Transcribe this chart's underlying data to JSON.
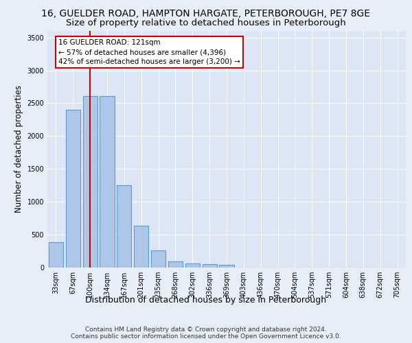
{
  "title_line1": "16, GUELDER ROAD, HAMPTON HARGATE, PETERBOROUGH, PE7 8GE",
  "title_line2": "Size of property relative to detached houses in Peterborough",
  "xlabel": "Distribution of detached houses by size in Peterborough",
  "ylabel": "Number of detached properties",
  "footer_line1": "Contains HM Land Registry data © Crown copyright and database right 2024.",
  "footer_line2": "Contains public sector information licensed under the Open Government Licence v3.0.",
  "bar_labels": [
    "33sqm",
    "67sqm",
    "100sqm",
    "134sqm",
    "167sqm",
    "201sqm",
    "235sqm",
    "268sqm",
    "302sqm",
    "336sqm",
    "369sqm",
    "403sqm",
    "436sqm",
    "470sqm",
    "504sqm",
    "537sqm",
    "571sqm",
    "604sqm",
    "638sqm",
    "672sqm",
    "705sqm"
  ],
  "bar_values": [
    390,
    2400,
    2610,
    2610,
    1250,
    640,
    260,
    95,
    60,
    55,
    40,
    0,
    0,
    0,
    0,
    0,
    0,
    0,
    0,
    0,
    0
  ],
  "bar_color": "#aec6e8",
  "bar_edge_color": "#5b9bd5",
  "highlight_bar_index": 2,
  "highlight_line_color": "#cc0000",
  "annotation_box_text": "16 GUELDER ROAD: 121sqm\n← 57% of detached houses are smaller (4,396)\n42% of semi-detached houses are larger (3,200) →",
  "annotation_box_color": "#cc0000",
  "ylim": [
    0,
    3600
  ],
  "yticks": [
    0,
    500,
    1000,
    1500,
    2000,
    2500,
    3000,
    3500
  ],
  "bg_color": "#e8eef7",
  "plot_bg_color": "#dce6f4",
  "grid_color": "#ffffff",
  "title_fontsize": 10,
  "subtitle_fontsize": 9.5,
  "ylabel_fontsize": 8.5,
  "xlabel_fontsize": 9,
  "tick_fontsize": 7,
  "annotation_fontsize": 7.5,
  "footer_fontsize": 6.5
}
